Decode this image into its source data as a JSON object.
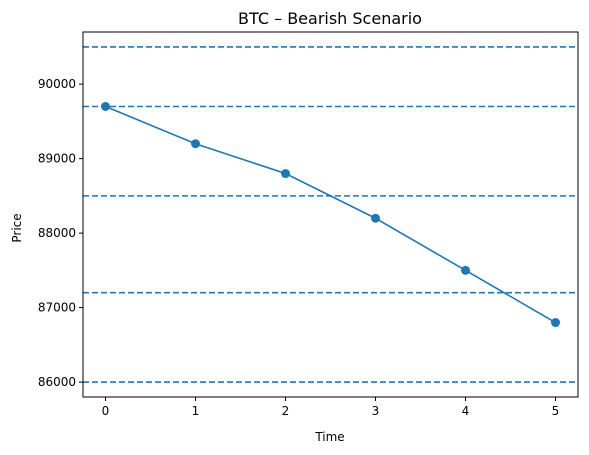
{
  "chart_data": {
    "type": "line",
    "title": "BTC – Bearish Scenario",
    "xlabel": "Time",
    "ylabel": "Price",
    "xlim": [
      -0.25,
      5.25
    ],
    "ylim": [
      85800,
      90700
    ],
    "xticks": [
      0,
      1,
      2,
      3,
      4,
      5
    ],
    "yticks": [
      86000,
      87000,
      88000,
      89000,
      90000
    ],
    "grid": false,
    "series": [
      {
        "x": [
          0,
          1,
          2,
          3,
          4,
          5
        ],
        "y": [
          89700,
          89200,
          88800,
          88200,
          87500,
          86800
        ],
        "color": "#1f77b4",
        "marker": "circle"
      }
    ],
    "horizontal_lines": [
      {
        "y": 90500,
        "style": "dashed",
        "color": "#1f77b4"
      },
      {
        "y": 89700,
        "style": "dashed",
        "color": "#1f77b4"
      },
      {
        "y": 88500,
        "style": "dashed",
        "color": "#1f77b4"
      },
      {
        "y": 87200,
        "style": "dashed",
        "color": "#1f77b4"
      },
      {
        "y": 86000,
        "style": "dashed",
        "color": "#1f77b4"
      }
    ]
  }
}
